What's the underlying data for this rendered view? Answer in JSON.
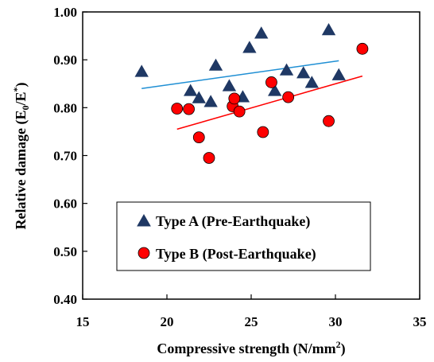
{
  "chart_data": {
    "type": "scatter",
    "xlabel_text": "Compressive strength (N/mm",
    "xlabel_sup": "2",
    "xlabel_tail": ")",
    "ylabel_text": "Relative damage (E",
    "ylabel_sub": "0",
    "ylabel_mid": "/E",
    "ylabel_sup": "*",
    "ylabel_tail": ")",
    "xlim": [
      15,
      35
    ],
    "ylim": [
      0.4,
      1.0
    ],
    "x_ticks": [
      "15",
      "20",
      "25",
      "30",
      "35"
    ],
    "y_ticks": [
      "0.40",
      "0.50",
      "0.60",
      "0.70",
      "0.80",
      "0.90",
      "1.00"
    ],
    "grid": false,
    "legend_position": "bottom-left",
    "series": [
      {
        "name": "Type A (Pre-Earthquake)",
        "marker": "triangle",
        "color": "#1f3864",
        "trend_color": "#1f8fd4",
        "points": [
          {
            "x": 18.5,
            "y": 0.875
          },
          {
            "x": 21.4,
            "y": 0.835
          },
          {
            "x": 21.9,
            "y": 0.82
          },
          {
            "x": 22.6,
            "y": 0.812
          },
          {
            "x": 22.9,
            "y": 0.888
          },
          {
            "x": 23.7,
            "y": 0.845
          },
          {
            "x": 24.5,
            "y": 0.822
          },
          {
            "x": 24.9,
            "y": 0.925
          },
          {
            "x": 25.6,
            "y": 0.955
          },
          {
            "x": 26.4,
            "y": 0.835
          },
          {
            "x": 27.1,
            "y": 0.878
          },
          {
            "x": 28.1,
            "y": 0.872
          },
          {
            "x": 28.6,
            "y": 0.852
          },
          {
            "x": 29.6,
            "y": 0.962
          },
          {
            "x": 30.2,
            "y": 0.868
          }
        ],
        "trendline": [
          {
            "x": 18.5,
            "y": 0.84
          },
          {
            "x": 30.2,
            "y": 0.898
          }
        ]
      },
      {
        "name": "Type B (Post-Earthquake)",
        "marker": "circle",
        "color": "#ff0000",
        "trend_color": "#ff0000",
        "points": [
          {
            "x": 20.6,
            "y": 0.798
          },
          {
            "x": 21.3,
            "y": 0.797
          },
          {
            "x": 21.9,
            "y": 0.738
          },
          {
            "x": 22.5,
            "y": 0.695
          },
          {
            "x": 23.9,
            "y": 0.803
          },
          {
            "x": 24.0,
            "y": 0.819
          },
          {
            "x": 24.3,
            "y": 0.792
          },
          {
            "x": 25.7,
            "y": 0.749
          },
          {
            "x": 26.2,
            "y": 0.853
          },
          {
            "x": 27.2,
            "y": 0.822
          },
          {
            "x": 29.6,
            "y": 0.772
          },
          {
            "x": 31.6,
            "y": 0.923
          }
        ],
        "trendline": [
          {
            "x": 20.6,
            "y": 0.755
          },
          {
            "x": 31.6,
            "y": 0.866
          }
        ]
      }
    ]
  }
}
